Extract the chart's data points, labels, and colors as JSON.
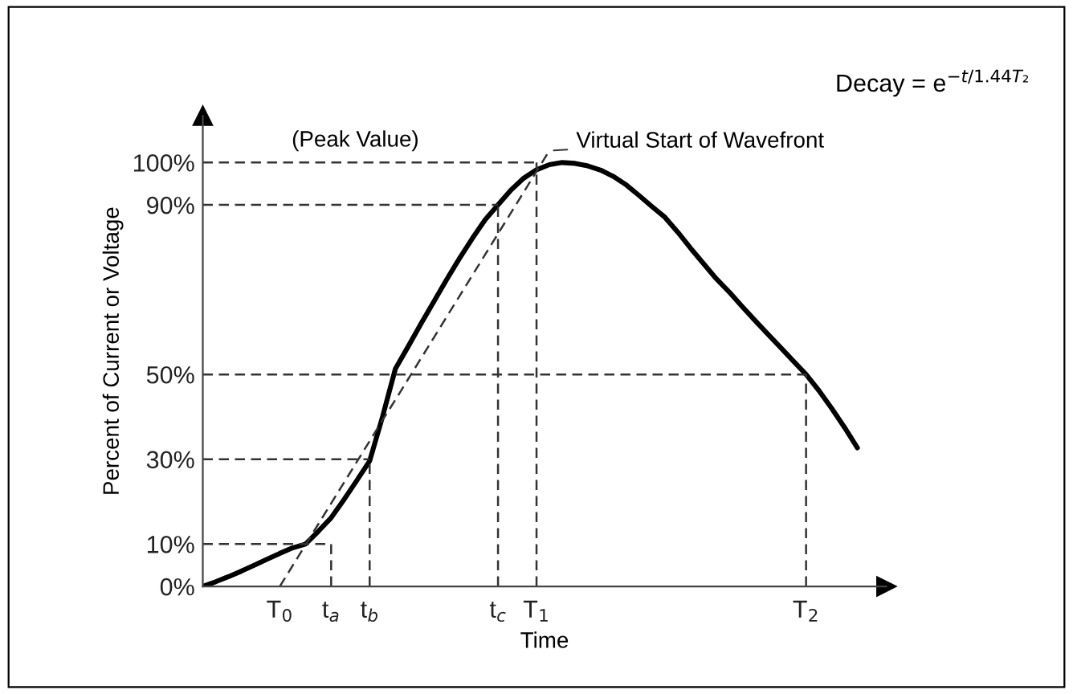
{
  "chart_data": {
    "type": "line",
    "xlabel": "Time",
    "ylabel": "Percent of Current or Voltage",
    "ylim": [
      0,
      111
    ],
    "categories": [
      null,
      null,
      null,
      null,
      null,
      null,
      "T$_{0}$",
      null,
      null,
      null,
      "t$_{a}$",
      null,
      null,
      "t$_{b}$",
      null,
      null,
      null,
      null,
      null,
      null,
      null,
      null,
      null,
      "t$_{c}$",
      null,
      null,
      "T$_{1}$",
      null,
      null,
      null,
      null,
      null,
      null,
      null,
      null,
      null,
      null,
      null,
      null,
      null,
      null,
      null,
      null,
      null,
      null,
      null,
      null,
      "T$_{2}$",
      null,
      null,
      null,
      null,
      null,
      null
    ],
    "yticks": [
      {
        "value": 0,
        "label": "0%"
      },
      {
        "value": 10,
        "label": "10%"
      },
      {
        "value": 30,
        "label": "30%"
      },
      {
        "value": 50,
        "label": "50%"
      },
      {
        "value": 90,
        "label": "90%"
      },
      {
        "value": 100,
        "label": "100%"
      }
    ],
    "grid": false,
    "legend": false,
    "series": [
      {
        "color": "#000000",
        "line_style": "solid",
        "values": [
          0,
          1.1,
          2.3,
          3.6,
          5,
          6.4,
          7.8,
          9.1,
          10,
          13,
          16.2,
          20.5,
          25,
          29.6,
          40,
          51.3,
          56.6,
          62,
          67.2,
          72.4,
          77.4,
          82.1,
          86.5,
          90,
          93.5,
          96.3,
          98.3,
          99.5,
          100,
          99.8,
          99.2,
          98.2,
          96.7,
          94.7,
          92.2,
          89.6,
          87.1,
          83.6,
          79.8,
          76.2,
          72.6,
          69.5,
          66.1,
          62.8,
          59.6,
          56.4,
          53.2,
          50,
          46.2,
          42,
          37.5,
          32.7,
          null,
          null
        ]
      },
      {
        "color": "#333333",
        "line_style": "dashed",
        "values": [
          10,
          10,
          10,
          10,
          10,
          10,
          10,
          10,
          10,
          10,
          10,
          null,
          null,
          null,
          null,
          null,
          null,
          null,
          null,
          null,
          null,
          null,
          null,
          null,
          null,
          null,
          null,
          null,
          null,
          null,
          null,
          null,
          null,
          null,
          null,
          null,
          null,
          null,
          null,
          null,
          null,
          null,
          null,
          null,
          null,
          null,
          null,
          null,
          null,
          null,
          null,
          null,
          null,
          null
        ],
        "errors": [
          null,
          null,
          null,
          null,
          null,
          null,
          null,
          null,
          null,
          null,
          [
            0,
            10
          ],
          null,
          null,
          null,
          null,
          null,
          null,
          null,
          null,
          null,
          null,
          null,
          null,
          null,
          null,
          null,
          null,
          null,
          null,
          null,
          null,
          null,
          null,
          null,
          null,
          null,
          null,
          null,
          null,
          null,
          null,
          null,
          null,
          null,
          null,
          null,
          null,
          null,
          null,
          null,
          null,
          null,
          null,
          null
        ]
      },
      {
        "color": "#333333",
        "line_style": "dashed",
        "values": [
          30,
          30,
          30,
          30,
          30,
          30,
          30,
          30,
          30,
          30,
          30,
          30,
          30,
          30,
          null,
          null,
          null,
          null,
          null,
          null,
          null,
          null,
          null,
          null,
          null,
          null,
          null,
          null,
          null,
          null,
          null,
          null,
          null,
          null,
          null,
          null,
          null,
          null,
          null,
          null,
          null,
          null,
          null,
          null,
          null,
          null,
          null,
          null,
          null,
          null,
          null,
          null,
          null,
          null
        ],
        "errors": [
          null,
          null,
          null,
          null,
          null,
          null,
          null,
          null,
          null,
          null,
          null,
          null,
          null,
          [
            0,
            30
          ],
          null,
          null,
          null,
          null,
          null,
          null,
          null,
          null,
          null,
          null,
          null,
          null,
          null,
          null,
          null,
          null,
          null,
          null,
          null,
          null,
          null,
          null,
          null,
          null,
          null,
          null,
          null,
          null,
          null,
          null,
          null,
          null,
          null,
          null,
          null,
          null,
          null,
          null,
          null,
          null
        ]
      },
      {
        "color": "#333333",
        "line_style": "dashed",
        "values": [
          50,
          50,
          50,
          50,
          50,
          50,
          50,
          50,
          50,
          50,
          50,
          50,
          50,
          50,
          50,
          50,
          50,
          50,
          50,
          50,
          50,
          50,
          50,
          50,
          50,
          50,
          50,
          50,
          50,
          50,
          50,
          50,
          50,
          50,
          50,
          50,
          50,
          50,
          50,
          50,
          50,
          50,
          50,
          50,
          50,
          50,
          50,
          50,
          null,
          null,
          null,
          null,
          null,
          null
        ],
        "errors": [
          null,
          null,
          null,
          null,
          null,
          null,
          null,
          null,
          null,
          null,
          null,
          null,
          null,
          null,
          null,
          null,
          null,
          null,
          null,
          null,
          null,
          null,
          null,
          null,
          null,
          null,
          null,
          null,
          null,
          null,
          null,
          null,
          null,
          null,
          null,
          null,
          null,
          null,
          null,
          null,
          null,
          null,
          null,
          null,
          null,
          null,
          null,
          [
            0,
            50
          ],
          null,
          null,
          null,
          null,
          null,
          null
        ]
      },
      {
        "color": "#333333",
        "line_style": "dashed",
        "values": [
          90,
          90,
          90,
          90,
          90,
          90,
          90,
          90,
          90,
          90,
          90,
          90,
          90,
          90,
          90,
          90,
          90,
          90,
          90,
          90,
          90,
          90,
          90,
          90,
          null,
          null,
          null,
          null,
          null,
          null,
          null,
          null,
          null,
          null,
          null,
          null,
          null,
          null,
          null,
          null,
          null,
          null,
          null,
          null,
          null,
          null,
          null,
          null,
          null,
          null,
          null,
          null,
          null,
          null
        ],
        "errors": [
          null,
          null,
          null,
          null,
          null,
          null,
          null,
          null,
          null,
          null,
          null,
          null,
          null,
          null,
          null,
          null,
          null,
          null,
          null,
          null,
          null,
          null,
          null,
          [
            0,
            90
          ],
          null,
          null,
          null,
          null,
          null,
          null,
          null,
          null,
          null,
          null,
          null,
          null,
          null,
          null,
          null,
          null,
          null,
          null,
          null,
          null,
          null,
          null,
          null,
          null,
          null,
          null,
          null,
          null,
          null,
          null
        ]
      },
      {
        "color": "#333333",
        "line_style": "dashed",
        "values": [
          100,
          100,
          100,
          100,
          100,
          100,
          100,
          100,
          100,
          100,
          100,
          100,
          100,
          100,
          100,
          100,
          100,
          100,
          100,
          100,
          100,
          100,
          100,
          100,
          100,
          100,
          100,
          null,
          null,
          null,
          null,
          null,
          null,
          null,
          null,
          null,
          null,
          null,
          null,
          null,
          null,
          null,
          null,
          null,
          null,
          null,
          null,
          null,
          null,
          null,
          null,
          null,
          null,
          null
        ],
        "errors": [
          null,
          null,
          null,
          null,
          null,
          null,
          null,
          null,
          null,
          null,
          null,
          null,
          null,
          null,
          null,
          null,
          null,
          null,
          null,
          null,
          null,
          null,
          null,
          null,
          null,
          null,
          [
            0,
            100
          ],
          null,
          null,
          null,
          null,
          null,
          null,
          null,
          null,
          null,
          null,
          null,
          null,
          null,
          null,
          null,
          null,
          null,
          null,
          null,
          null,
          null,
          null,
          null,
          null,
          null,
          null,
          null
        ]
      },
      {
        "color": "#333333",
        "line_style": "dashed",
        "values": [
          null,
          null,
          null,
          null,
          null,
          null,
          0,
          4.9,
          9.8,
          14.7,
          19.6,
          24.5,
          29.4,
          34.3,
          39.2,
          44.0,
          48.9,
          53.8,
          58.7,
          63.6,
          68.5,
          73.4,
          78.3,
          83.2,
          88.1,
          93.0,
          97.9,
          102.8,
          null,
          null,
          null,
          null,
          null,
          null,
          null,
          null,
          null,
          null,
          null,
          null,
          null,
          null,
          null,
          null,
          null,
          null,
          null,
          null,
          null,
          null,
          null,
          null,
          null,
          null
        ]
      }
    ],
    "annotations": [
      "(Peak Value)",
      "Virtual Start of Wavefront",
      "Decay = e$^{−t/1.44T₂}$"
    ]
  }
}
